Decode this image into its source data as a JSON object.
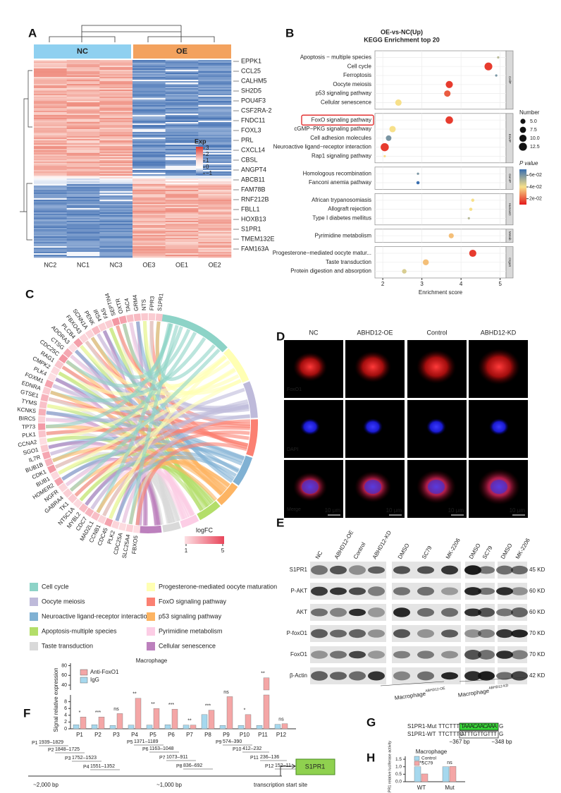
{
  "panels": {
    "A": {
      "label": "A",
      "groups": [
        "NC",
        "OE"
      ],
      "samples": [
        "NC2",
        "NC1",
        "NC3",
        "OE3",
        "OE1",
        "OE2"
      ],
      "genes": [
        "EPPK1",
        "CCL25",
        "CALHM5",
        "SH2D5",
        "POU4F3",
        "CSF2RA-2",
        "FNDC11",
        "FOXL3",
        "PRL",
        "CXCL14",
        "CBSL",
        "ANGPT4",
        "ABCB11",
        "FAM78B",
        "RNF212B",
        "FBLL1",
        "HOXB13",
        "S1PR1",
        "TMEM132E",
        "FAM163A"
      ],
      "legend": {
        "title": "Exp",
        "ticks": [
          3,
          2,
          1,
          0,
          {
            "value": -1,
            "label": "−1"
          }
        ]
      }
    },
    "B": {
      "label": "B",
      "title": "OE-vs-NC(Up)",
      "subtitle": "KEGG Enrichment top 20",
      "xlabel": "Enrichment score",
      "xlim": [
        1.8,
        5.15
      ],
      "xticks": [
        2,
        3,
        4,
        5
      ],
      "facets": [
        {
          "name": "CellP",
          "terms": [
            "Apoptosis − multiple species",
            "Cell cycle",
            "Ferroptosis",
            "Oocyte meiosis",
            "p53 signaling pathway",
            "Cellular senescence"
          ],
          "scores": [
            4.95,
            4.7,
            4.9,
            3.7,
            3.65,
            2.4
          ],
          "counts": [
            1,
            12,
            1,
            10,
            8,
            8
          ],
          "pvalues": [
            0.05,
            0.015,
            0.06,
            0.015,
            0.02,
            0.04
          ]
        },
        {
          "name": "EnvIP",
          "terms": [
            "FoxO signaling pathway",
            "cGMP−PKG signaling pathway",
            "Cell adhesion molecules",
            "Neuroactive ligand−receptor interaction",
            "Rap1 signaling pathway"
          ],
          "scores": [
            3.7,
            2.25,
            2.15,
            2.05,
            2.05
          ],
          "counts": [
            11,
            8,
            6,
            13,
            1
          ],
          "pvalues": [
            0.015,
            0.04,
            0.06,
            0.015,
            0.04
          ]
        },
        {
          "name": "GenIP",
          "terms": [
            "Homologous recombination",
            "Fanconi anemia pathway"
          ],
          "scores": [
            2.9,
            2.9
          ],
          "counts": [
            1,
            2
          ],
          "pvalues": [
            0.06,
            0.07
          ]
        },
        {
          "name": "HumanD",
          "terms": [
            "African trypanosomiasis",
            "Allograft rejection",
            "Type I diabetes mellitus"
          ],
          "scores": [
            4.3,
            4.25,
            4.2
          ],
          "counts": [
            2,
            2,
            1
          ],
          "pvalues": [
            0.04,
            0.04,
            0.05
          ]
        },
        {
          "name": "Metab",
          "terms": [
            "Pyrimidine metabolism"
          ],
          "scores": [
            3.75
          ],
          "counts": [
            5
          ],
          "pvalues": [
            0.035
          ]
        },
        {
          "name": "OrgaS",
          "terms": [
            "Progesterone−mediated oocyte matur...",
            "Taste transduction",
            "Protein digestion and absorption"
          ],
          "scores": [
            4.3,
            3.1,
            2.55
          ],
          "counts": [
            10,
            7,
            4
          ],
          "pvalues": [
            0.015,
            0.035,
            0.045
          ]
        }
      ],
      "size_legend": {
        "title": "Number",
        "ticks": [
          {
            "value": 5,
            "label": "5.0"
          },
          {
            "value": 7.5,
            "label": "7.5"
          },
          {
            "value": 10,
            "label": "10.0"
          },
          {
            "value": 12.5,
            "label": "12.5"
          }
        ]
      },
      "color_legend": {
        "title": "P value",
        "lim": [
          0.01,
          0.07
        ],
        "ticks": [
          {
            "value": 0.06,
            "label": "6e-02"
          },
          {
            "value": 0.04,
            "label": "4e-02"
          },
          {
            "value": 0.02,
            "label": "2e-02"
          }
        ]
      }
    },
    "C": {
      "label": "C",
      "genes": [
        "S1PR1",
        "FPR3",
        "NTS",
        "GRM4",
        "TAC4",
        "OXTR",
        "SEPTIN4",
        "FAS",
        "IRS4",
        "PENK",
        "SCNN1A",
        "FBXO43",
        "PLCB4",
        "ADORA3",
        "CTSG",
        "CDC25C",
        "RAG1",
        "CMPK2",
        "PLK4",
        "FOXM1",
        "EDNRA",
        "GTSE1",
        "TYMS",
        "KCNK5",
        "BIRC5",
        "TP73",
        "PLK1",
        "CCNA2",
        "SGO1",
        "IL7R",
        "BUB1B",
        "CDK1",
        "BUB1",
        "HOMER2",
        "NGFR",
        "GABRA4",
        "TK1",
        "NT5C1A",
        "MYBL2",
        "CDC7",
        "MAD2L1",
        "CCNB1",
        "CDC45",
        "PLK2",
        "CDC25A",
        "SLC25A4",
        "FBXO5"
      ],
      "legend_title": "logFC",
      "legend_ticks": [
        1,
        5
      ],
      "pathways": [
        {
          "name": "Cell cycle",
          "color": "#8dd3c7"
        },
        {
          "name": "Progesterone-mediated oocyte maturation",
          "color": "#ffffb3"
        },
        {
          "name": "Oocyte meiosis",
          "color": "#bebada"
        },
        {
          "name": "FoxO signaling pathway",
          "color": "#fb8072"
        },
        {
          "name": "Neuroactive ligand-receptor interaction",
          "color": "#80b1d3"
        },
        {
          "name": "p53 signaling pathway",
          "color": "#fdb462"
        },
        {
          "name": "Apoptosis-multiple species",
          "color": "#b3de69"
        },
        {
          "name": "Pyrimidine metabolism",
          "color": "#fccde5"
        },
        {
          "name": "Taste transduction",
          "color": "#d9d9d9"
        },
        {
          "name": "Cellular senescence",
          "color": "#bc80bd"
        }
      ]
    },
    "D": {
      "label": "D",
      "columns": [
        "NC",
        "ABHD12-OE",
        "Control",
        "ABHD12-KD"
      ],
      "rows": [
        "FoxO1",
        "DAPI",
        "Merge"
      ],
      "scale_bar": "10 μm"
    },
    "E": {
      "label": "E",
      "lanes": [
        "NC",
        "ABHD12-OE",
        "Control",
        "ABHD12-KD",
        "DMSO",
        "SC79",
        "MK-2206",
        "DMSO",
        "SC79",
        "DMSO",
        "MK-2206"
      ],
      "proteins": [
        {
          "name": "S1PR1",
          "size": "45 KD"
        },
        {
          "name": "P-AKT",
          "size": "60 KD"
        },
        {
          "name": "AKT",
          "size": "60 KD"
        },
        {
          "name": "P-foxO1",
          "size": "70 KD"
        },
        {
          "name": "FoxO1",
          "size": "70 KD"
        },
        {
          "name": "β-Actin",
          "size": "42 KD"
        }
      ],
      "groups": [
        {
          "base": "Macrophage",
          "sup": "ABHD12-OE"
        },
        {
          "base": "Macrophage",
          "sup": "ABHD12-KD"
        }
      ]
    },
    "F": {
      "label": "F",
      "title": "Macrophage",
      "ylabel": "Signal relative expression",
      "categories": [
        "P1",
        "P2",
        "P3",
        "P4",
        "P5",
        "P6",
        "P7",
        "P8",
        "P9",
        "P10",
        "P11",
        "P12"
      ],
      "lower_ylim": [
        0,
        10
      ],
      "lower_yticks": [
        0,
        2,
        4,
        6,
        8
      ],
      "upper_ylim": [
        30,
        85
      ],
      "upper_yticks": [
        40,
        60,
        80
      ],
      "series": [
        {
          "name": "Anti-FoxO1",
          "color": "#f4a6a6",
          "values": [
            3.5,
            3.5,
            4.5,
            9,
            6,
            5.8,
            1.1,
            5.5,
            9.5,
            4.2,
            55,
            1.5
          ]
        },
        {
          "name": "IgG",
          "color": "#a6d8ee",
          "values": [
            1.2,
            1.2,
            1,
            1.1,
            1.1,
            1.2,
            1.1,
            4.2,
            1,
            1,
            1,
            1.3
          ]
        }
      ],
      "significance": [
        "*",
        "***",
        "ns",
        "**",
        "**",
        "***",
        "**",
        "***",
        "ns",
        "*",
        "**",
        "ns"
      ],
      "regions": [
        {
          "name": "P1",
          "range": "1939–1829"
        },
        {
          "name": "P2",
          "range": "1848–1725"
        },
        {
          "name": "P3",
          "range": "1752–1523"
        },
        {
          "name": "P4",
          "range": "1551–1352"
        },
        {
          "name": "P5",
          "range": "1371–1189"
        },
        {
          "name": "P6",
          "range": "1163–1048"
        },
        {
          "name": "P7",
          "range": "1073–911"
        },
        {
          "name": "P8",
          "range": "836–692"
        },
        {
          "name": "P9",
          "range": "574–390"
        },
        {
          "name": "P10",
          "range": "412–232"
        },
        {
          "name": "P11",
          "range": "236–136"
        },
        {
          "name": "P12",
          "range": "152–11"
        }
      ],
      "axis_labels": [
        "~2,000 bp",
        "~1,000 bp",
        "transcription start site"
      ],
      "gene": "S1PR1"
    },
    "G": {
      "label": "G",
      "rows": [
        {
          "name": "S1PR1-Mut",
          "prefix": "TTCTTTC",
          "site": "TAAACAACAAA",
          "suffix": "G"
        },
        {
          "name": "S1PR1-WT",
          "prefix": "TTCTTTC",
          "site": "ATTTGTTGTTT",
          "suffix": "G"
        }
      ],
      "start": "−367 bp",
      "end": "−348 bp"
    },
    "H": {
      "label": "H",
      "title": "Macrophage",
      "ylabel": "S1PR1 relative luciferase activity",
      "categories": [
        "WT",
        "Mut"
      ],
      "ylim": [
        0,
        1.6
      ],
      "yticks": [
        {
          "value": 0,
          "label": "0.0"
        },
        {
          "value": 0.5,
          "label": "0.5"
        },
        {
          "value": 1,
          "label": "1.0"
        },
        {
          "value": 1.5,
          "label": "1.5"
        }
      ],
      "series": [
        {
          "name": "Control",
          "color": "#a6d8ee",
          "values": [
            1.0,
            1.0
          ]
        },
        {
          "name": "SC79",
          "color": "#f4a6a6",
          "values": [
            0.52,
            1.02
          ]
        }
      ],
      "significance": [
        "**",
        "ns"
      ]
    }
  }
}
